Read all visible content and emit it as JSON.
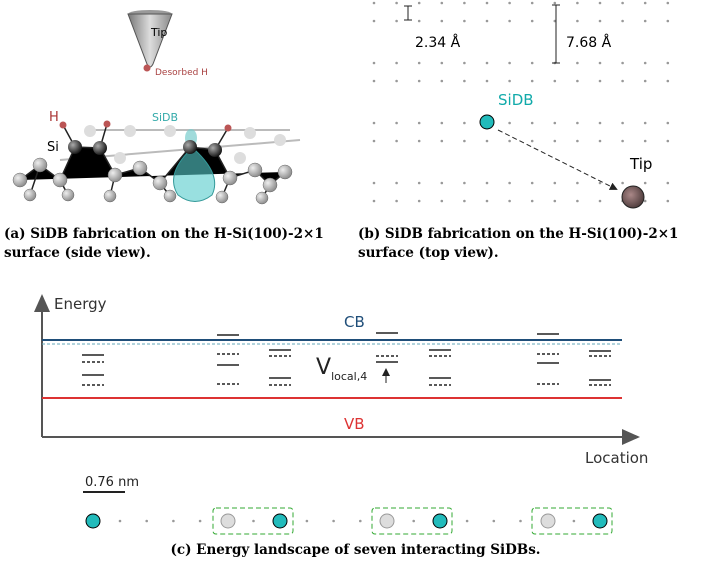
{
  "panel_a": {
    "tip_label": "Tip",
    "desorbed_label": "Desorbed H",
    "h_label": "H",
    "si_label": "Si",
    "sidb_label": "SiDB",
    "caption": "(a) SiDB fabrication on the H-Si(100)-2×1 surface (side view)."
  },
  "panel_b": {
    "spacing_small": "2.34 Å",
    "spacing_large": "7.68 Å",
    "sidb_label": "SiDB",
    "tip_label": "Tip",
    "caption": "(b) SiDB fabrication on the H-Si(100)-2×1 surface (top view)."
  },
  "panel_c": {
    "y_label": "Energy",
    "x_label": "Location",
    "cb_label": "CB",
    "vb_label": "VB",
    "v_symbol": "V",
    "v_subscript": "local,4",
    "scale_label": "0.76 nm",
    "caption": "(c) Energy landscape of seven interacting SiDBs."
  }
}
